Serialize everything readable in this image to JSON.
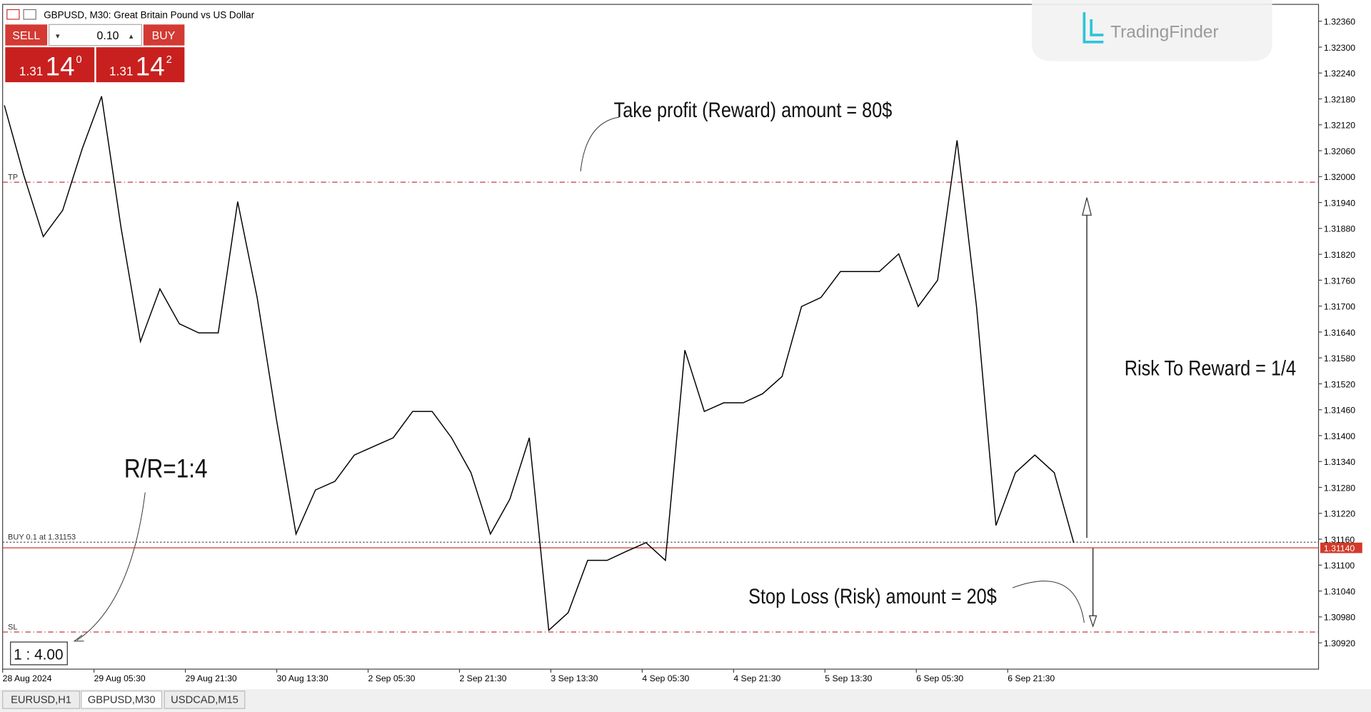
{
  "window": {
    "title": "GBPUSD, M30:  Great Britain Pound vs US Dollar"
  },
  "trade_panel": {
    "sell": "SELL",
    "buy": "BUY",
    "volume": "0.10",
    "sell_price": {
      "big": "1.31",
      "main": "14",
      "small": "0"
    },
    "buy_price": {
      "big": "1.31",
      "main": "14",
      "small": "2"
    }
  },
  "watermark": "TradingFinder",
  "tabs": [
    "EURUSD,H1",
    "GBPUSD,M30",
    "USDCAD,M15"
  ],
  "chart_data": {
    "type": "line",
    "series": [
      {
        "color": "#000000",
        "values": [
          1.32165,
          1.32003,
          1.31861,
          1.31922,
          1.32064,
          1.32186,
          1.31882,
          1.31618,
          1.3174,
          1.31659,
          1.31638,
          1.31638,
          1.31942,
          1.3172,
          1.31436,
          1.31172,
          1.31274,
          1.31294,
          1.31355,
          1.31375,
          1.31395,
          1.31456,
          1.31456,
          1.31395,
          1.31314,
          1.31172,
          1.31253,
          1.31395,
          1.30949,
          1.3099,
          1.31111,
          1.31111,
          1.31132,
          1.31152,
          1.31111,
          1.31598,
          1.31456,
          1.31476,
          1.31476,
          1.31497,
          1.31537,
          1.31699,
          1.3172,
          1.3178,
          1.3178,
          1.3178,
          1.31821,
          1.31699,
          1.3176,
          1.32084,
          1.31699,
          1.31192,
          1.31314,
          1.31355,
          1.31314,
          1.31152
        ]
      }
    ],
    "x_labels": [
      "28 Aug 2024",
      "29 Aug 05:30",
      "29 Aug 21:30",
      "30 Aug 13:30",
      "2 Sep 05:30",
      "2 Sep 21:30",
      "3 Sep 13:30",
      "4 Sep 05:30",
      "4 Sep 21:30",
      "5 Sep 13:30",
      "6 Sep 05:30",
      "6 Sep 21:30"
    ],
    "ylim": [
      1.30859,
      1.32399
    ],
    "yticks": [
      {
        "value": 1.3236,
        "label": "1.32360"
      },
      {
        "value": 1.323,
        "label": "1.32300"
      },
      {
        "value": 1.3224,
        "label": "1.32240"
      },
      {
        "value": 1.3218,
        "label": "1.32180"
      },
      {
        "value": 1.3212,
        "label": "1.32120"
      },
      {
        "value": 1.3206,
        "label": "1.32060"
      },
      {
        "value": 1.32,
        "label": "1.32000"
      },
      {
        "value": 1.3194,
        "label": "1.31940"
      },
      {
        "value": 1.3188,
        "label": "1.31880"
      },
      {
        "value": 1.3182,
        "label": "1.31820"
      },
      {
        "value": 1.3176,
        "label": "1.31760"
      },
      {
        "value": 1.317,
        "label": "1.31700"
      },
      {
        "value": 1.3164,
        "label": "1.31640"
      },
      {
        "value": 1.3158,
        "label": "1.31580"
      },
      {
        "value": 1.3152,
        "label": "1.31520"
      },
      {
        "value": 1.3146,
        "label": "1.31460"
      },
      {
        "value": 1.314,
        "label": "1.31400"
      },
      {
        "value": 1.3134,
        "label": "1.31340"
      },
      {
        "value": 1.3128,
        "label": "1.31280"
      },
      {
        "value": 1.3122,
        "label": "1.31220"
      },
      {
        "value": 1.3116,
        "label": "1.31160"
      },
      {
        "value": 1.311,
        "label": "1.31100"
      },
      {
        "value": 1.3104,
        "label": "1.31040"
      },
      {
        "value": 1.3098,
        "label": "1.30980"
      },
      {
        "value": 1.3092,
        "label": "1.30920"
      }
    ],
    "levels": [
      {
        "label": "TP",
        "value": 1.31987,
        "color": "#c0394a"
      },
      {
        "label": "SL",
        "value": 1.30945,
        "color": "#c0394a"
      },
      {
        "label": "BUY 0.1 at 1.31153",
        "value": 1.31153,
        "color": "#555555"
      }
    ],
    "current_price": {
      "value": 1.3114,
      "label": "1.31140",
      "color": "#d23a2a"
    },
    "annotations": [
      "Take profit (Reward) amount = 80$",
      "Risk To Reward = 1/4",
      "R/R=1:4",
      "Stop Loss (Risk) amount = 20$",
      "1 : 4.00"
    ]
  }
}
